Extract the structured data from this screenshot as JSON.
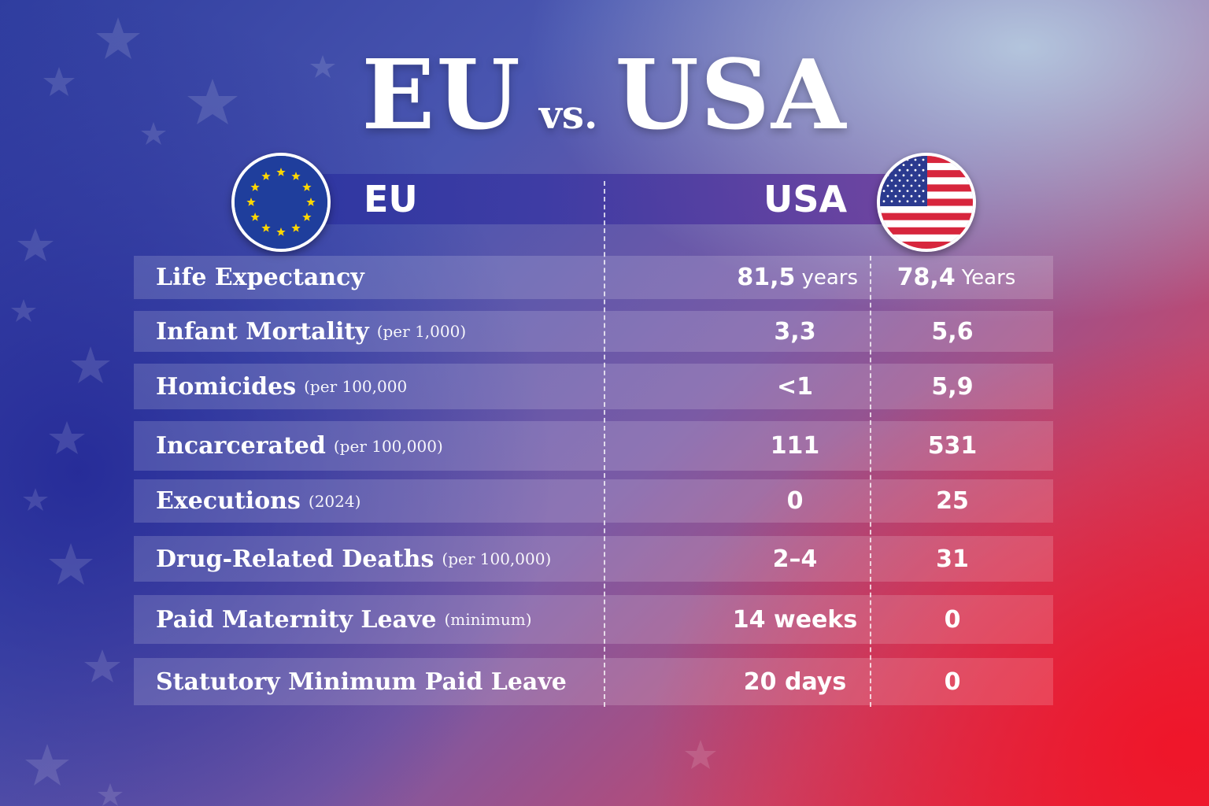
{
  "title": {
    "left": "EU",
    "vs": "vs.",
    "right": "USA"
  },
  "header": {
    "eu_label": "EU",
    "usa_label": "USA",
    "eu_flag_icon": "eu-flag-icon",
    "usa_flag_icon": "us-flag-icon"
  },
  "rows": [
    {
      "label": "Life Expectancy",
      "note": "",
      "eu": "81,5",
      "eu_unit": "years",
      "usa": "78,4",
      "usa_unit": "Years"
    },
    {
      "label": "Infant Mortality",
      "note": "(per 1,000)",
      "eu": "3,3",
      "usa": "5,6"
    },
    {
      "label": "Homicides",
      "note": "(per 100,000",
      "eu": "<1",
      "usa": "5,9"
    },
    {
      "label": "Incarcerated",
      "note": "(per 100,000)",
      "eu": "111",
      "usa": "531"
    },
    {
      "label": "Executions",
      "note": "(2024)",
      "eu": "0",
      "usa": "25"
    },
    {
      "label": "Drug-Related Deaths",
      "note": "(per 100,000)",
      "eu": "2–4",
      "usa": "31"
    },
    {
      "label": "Paid Maternity Leave",
      "note": "(minimum)",
      "eu": "14 weeks",
      "usa": "0"
    },
    {
      "label": "Statutory Minimum Paid Leave",
      "note": "",
      "eu": "20 days",
      "usa": "0"
    }
  ],
  "colors": {
    "eu_blue": "#1f3e9c",
    "eu_star": "#ffd700",
    "us_red": "#d7263d",
    "us_blue": "#2b3a8f"
  }
}
